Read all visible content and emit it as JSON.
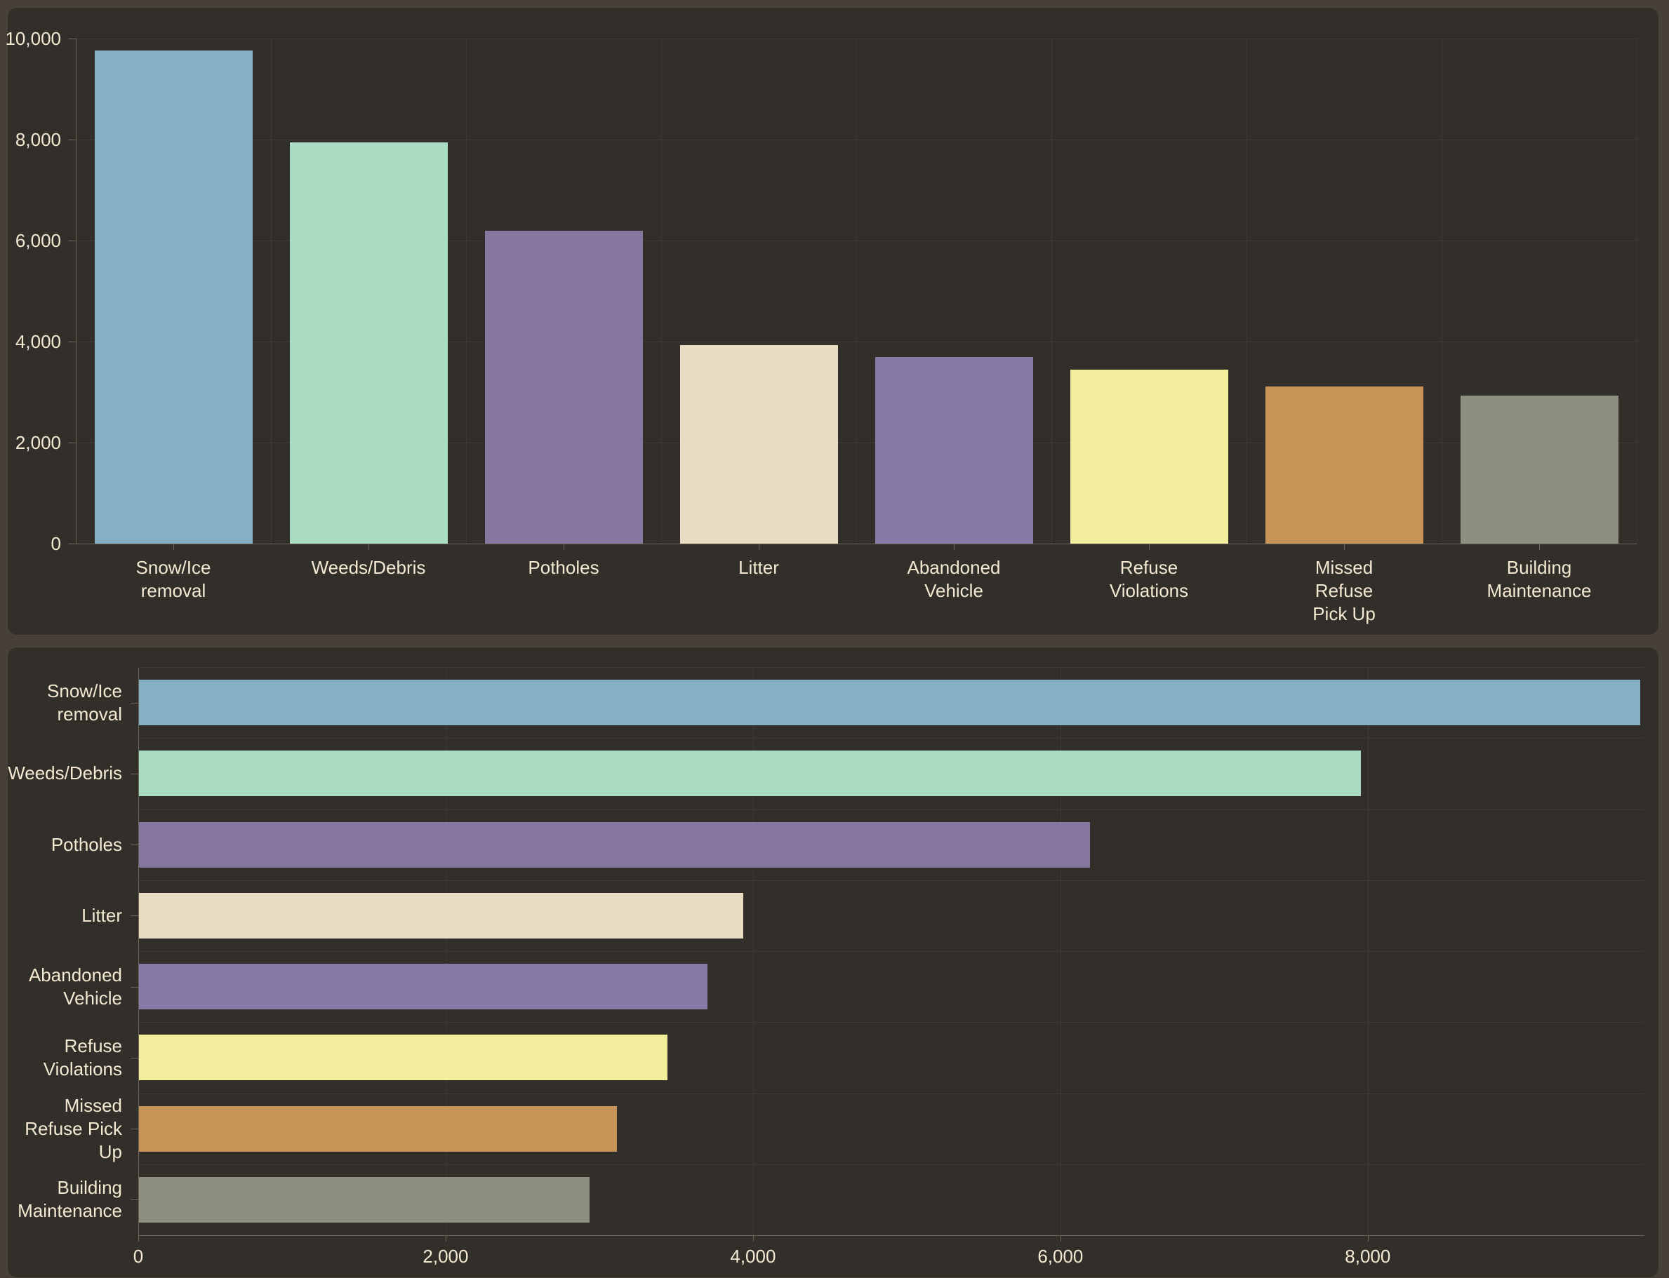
{
  "page": {
    "background": "#474039",
    "panel_background": "#322E29",
    "panel_border": "#4A443D",
    "text_color": "#F3E9D2",
    "gridline_color": "#3E3933",
    "axis_color": "#6B6457"
  },
  "chart_data": [
    {
      "type": "bar",
      "orientation": "vertical",
      "title": "",
      "categories": [
        "Snow/Ice removal",
        "Weeds/Debris",
        "Potholes",
        "Litter",
        "Abandoned Vehicle",
        "Refuse Violations",
        "Missed Refuse Pick Up",
        "Building Maintenance"
      ],
      "categories_wrapped": [
        "Snow/Ice\nremoval",
        "Weeds/Debris",
        "Potholes",
        "Litter",
        "Abandoned\nVehicle",
        "Refuse\nViolations",
        "Missed\nRefuse\nPick Up",
        "Building\nMaintenance"
      ],
      "values": [
        9770,
        7950,
        6190,
        3930,
        3700,
        3440,
        3110,
        2930
      ],
      "bar_colors": [
        "#85AFC3",
        "#A9DCC3",
        "#85779F",
        "#E8DCC3",
        "#867AA6",
        "#F2EE9D",
        "#C79356",
        "#8D8F80"
      ],
      "ylabel": "",
      "xlabel": "",
      "ylim": [
        0,
        10000
      ],
      "yticks": [
        {
          "value": 0,
          "label": "0"
        },
        {
          "value": 2000,
          "label": "2,000"
        },
        {
          "value": 4000,
          "label": "4,000"
        },
        {
          "value": 6000,
          "label": "6,000"
        },
        {
          "value": 8000,
          "label": "8,000"
        },
        {
          "value": 10000,
          "label": "10,000"
        }
      ],
      "grid": true,
      "legend": "none"
    },
    {
      "type": "bar",
      "orientation": "horizontal",
      "title": "",
      "categories": [
        "Snow/Ice removal",
        "Weeds/Debris",
        "Potholes",
        "Litter",
        "Abandoned Vehicle",
        "Refuse Violations",
        "Missed Refuse Pick Up",
        "Building Maintenance"
      ],
      "categories_wrapped": [
        "Snow/Ice\nremoval",
        "Weeds/Debris",
        "Potholes",
        "Litter",
        "Abandoned\nVehicle",
        "Refuse\nViolations",
        "Missed\nRefuse Pick\nUp",
        "Building\nMaintenance"
      ],
      "values": [
        9770,
        7950,
        6190,
        3930,
        3700,
        3440,
        3110,
        2930
      ],
      "bar_colors": [
        "#85AFC3",
        "#A9DCC3",
        "#85779F",
        "#E8DCC3",
        "#867AA6",
        "#F2EE9D",
        "#C79356",
        "#8D8F80"
      ],
      "ylabel": "",
      "xlabel": "",
      "xlim": [
        0,
        9800
      ],
      "xticks": [
        {
          "value": 0,
          "label": "0"
        },
        {
          "value": 2000,
          "label": "2,000"
        },
        {
          "value": 4000,
          "label": "4,000"
        },
        {
          "value": 6000,
          "label": "6,000"
        },
        {
          "value": 8000,
          "label": "8,000"
        }
      ],
      "grid": true,
      "legend": "none"
    }
  ]
}
